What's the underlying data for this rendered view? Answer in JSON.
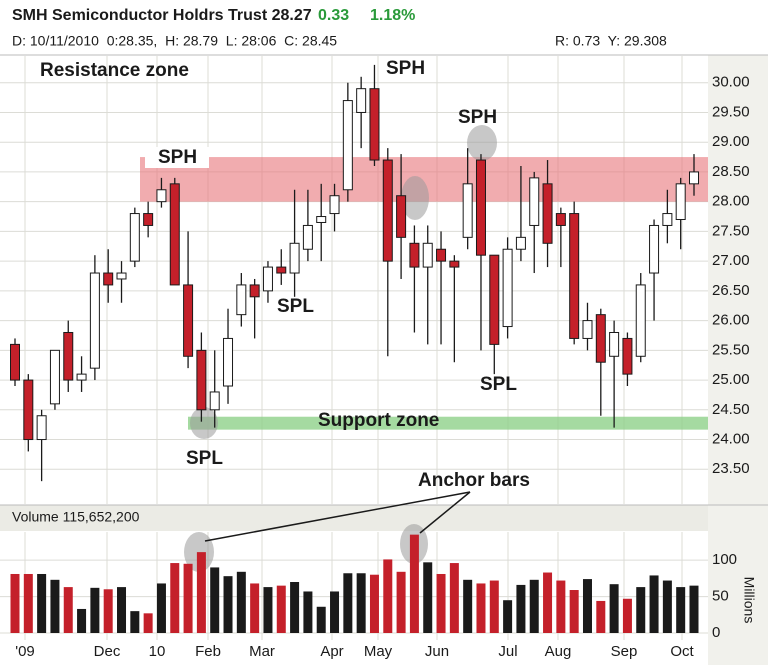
{
  "chart_data": {
    "type": "candlestick",
    "title": "SMH Semiconductor Holdrs Trust 28.27",
    "change": "0.33",
    "change_pct": "1.18%",
    "info_line": "D: 10/11/2010  0:28.35,  H: 28.79  L: 28:06  C: 28.45",
    "info_right": "R: 0.73  Y: 29.308",
    "x_labels": [
      "'09",
      "Dec",
      "10",
      "Feb",
      "Mar",
      "Apr",
      "May",
      "Jun",
      "Jul",
      "Aug",
      "Sep",
      "Oct"
    ],
    "open": [
      25.6,
      25.0,
      24.0,
      24.6,
      25.8,
      25.0,
      25.2,
      26.8,
      26.7,
      27.0,
      27.8,
      28.0,
      28.3,
      26.6,
      25.5,
      24.5,
      24.9,
      26.1,
      26.6,
      26.5,
      26.9,
      26.8,
      27.2,
      27.65,
      27.8,
      28.2,
      29.5,
      29.9,
      28.7,
      28.1,
      27.3,
      26.9,
      27.2,
      27.0,
      27.4,
      28.7,
      27.1,
      25.9,
      27.2,
      27.6,
      28.3,
      27.8,
      27.8,
      25.7,
      26.1,
      25.4,
      25.7,
      25.4,
      26.8,
      27.6,
      27.7,
      28.3
    ],
    "high": [
      25.7,
      25.1,
      24.5,
      25.5,
      26.0,
      25.4,
      27.1,
      27.2,
      27.0,
      27.9,
      28.0,
      28.4,
      28.4,
      27.5,
      25.8,
      25.5,
      26.2,
      26.8,
      26.7,
      27.0,
      27.2,
      28.2,
      28.2,
      28.3,
      28.3,
      30.0,
      30.1,
      30.3,
      28.9,
      28.8,
      27.6,
      27.6,
      27.5,
      27.1,
      28.9,
      28.8,
      27.1,
      27.4,
      28.6,
      28.5,
      28.7,
      27.9,
      28.0,
      26.3,
      26.2,
      26.0,
      25.8,
      26.8,
      27.7,
      28.2,
      28.4,
      28.8
    ],
    "low": [
      24.9,
      23.8,
      23.3,
      24.5,
      24.8,
      24.8,
      25.0,
      26.3,
      26.3,
      26.9,
      27.4,
      27.9,
      26.6,
      25.2,
      24.3,
      24.2,
      24.6,
      25.9,
      25.7,
      26.3,
      26.6,
      26.4,
      27.0,
      27.0,
      27.5,
      28.0,
      28.9,
      28.6,
      25.4,
      26.7,
      25.8,
      25.6,
      25.6,
      25.3,
      27.2,
      25.5,
      25.1,
      25.7,
      27.0,
      26.8,
      26.9,
      26.9,
      25.6,
      25.5,
      24.4,
      24.2,
      24.9,
      25.3,
      26.0,
      27.3,
      27.2,
      28.1
    ],
    "close": [
      25.0,
      24.0,
      24.4,
      25.5,
      25.0,
      25.1,
      26.8,
      26.6,
      26.8,
      27.8,
      27.6,
      28.2,
      26.6,
      25.4,
      24.5,
      24.8,
      25.7,
      26.6,
      26.4,
      26.9,
      26.8,
      27.3,
      27.6,
      27.75,
      28.1,
      29.7,
      29.9,
      28.7,
      27.0,
      27.4,
      26.9,
      27.3,
      27.0,
      26.9,
      28.3,
      27.1,
      25.6,
      27.2,
      27.4,
      28.4,
      27.3,
      27.6,
      25.7,
      26.0,
      25.3,
      25.8,
      25.1,
      26.6,
      27.6,
      27.8,
      28.3,
      28.5
    ],
    "up_color": "#ffffff",
    "down_color": "#c4202a",
    "ylim": [
      23,
      30.5
    ],
    "yticks": [
      {
        "value": 23.5,
        "label": "23.50"
      },
      {
        "value": 24,
        "label": "24.00"
      },
      {
        "value": 24.5,
        "label": "24.50"
      },
      {
        "value": 25,
        "label": "25.00"
      },
      {
        "value": 25.5,
        "label": "25.50"
      },
      {
        "value": 26,
        "label": "26.00"
      },
      {
        "value": 26.5,
        "label": "26.50"
      },
      {
        "value": 27,
        "label": "27.00"
      },
      {
        "value": 27.5,
        "label": "27.50"
      },
      {
        "value": 28,
        "label": "28.00"
      },
      {
        "value": 28.5,
        "label": "28.50"
      },
      {
        "value": 29,
        "label": "29.00"
      },
      {
        "value": 29.5,
        "label": "29.50"
      },
      {
        "value": 30,
        "label": "30.00"
      }
    ],
    "resistance_zone": [
      28.0,
      28.75
    ],
    "resistance_label": "Resistance zone",
    "support_zone": [
      24.2,
      24.35
    ],
    "support_label": "Support zone",
    "annotations": [
      "SPH",
      "SPH",
      "SPH",
      "SPL",
      "SPL",
      "SPL",
      "Anchor bars"
    ],
    "volume_label": "Volume 115,652,200",
    "volume_unit": "Millions",
    "volume": [
      81,
      81,
      81,
      73,
      63,
      33,
      62,
      60,
      63,
      30,
      27,
      68,
      96,
      95,
      111,
      90,
      78,
      84,
      68,
      63,
      65,
      70,
      57,
      36,
      57,
      82,
      82,
      80,
      101,
      84,
      135,
      97,
      81,
      96,
      73,
      68,
      72,
      45,
      66,
      73,
      83,
      72,
      59,
      74,
      44,
      67,
      47,
      63,
      79,
      72,
      63,
      65
    ],
    "volume_up_color": "#1a1a1a",
    "volume_down_color": "#c4202a",
    "vlim": [
      0,
      140
    ],
    "vticks": [
      0,
      50,
      100
    ],
    "grid": true
  }
}
